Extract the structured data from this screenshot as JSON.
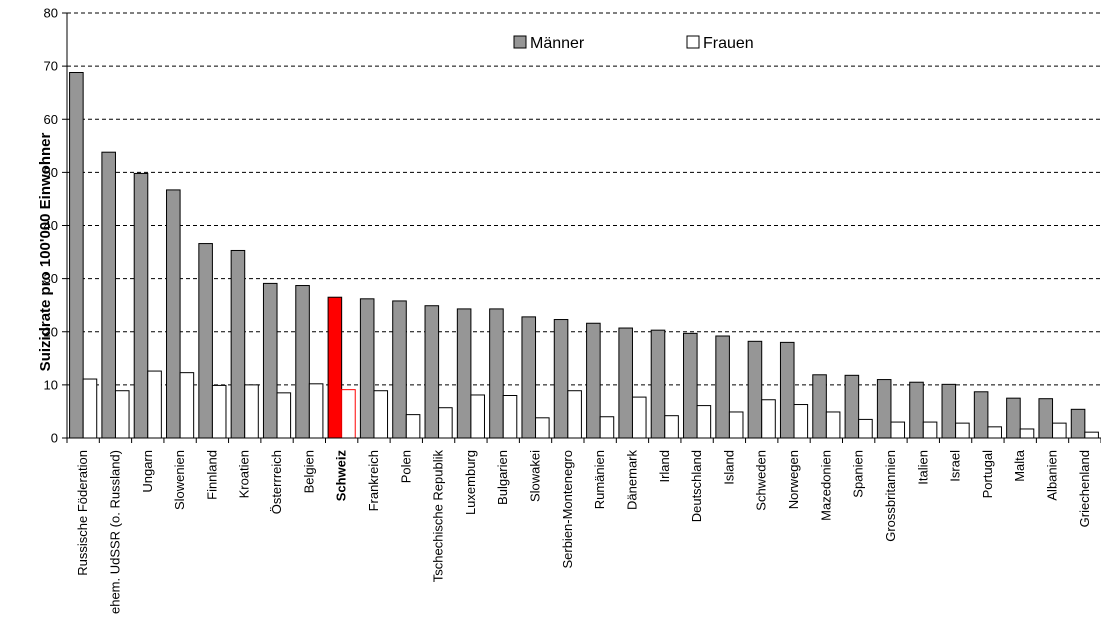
{
  "chart_data": {
    "type": "bar",
    "ylabel": "Suizidrate pro 100'000 Einwohner",
    "xlabel": "",
    "ylim": [
      0,
      80
    ],
    "yticks": [
      0,
      10,
      20,
      30,
      40,
      50,
      60,
      70,
      80
    ],
    "grid": true,
    "legend_position": "top-center",
    "categories": [
      "Russische Föderation",
      "ehem. UdSSR (o. Russland)",
      "Ungarn",
      "Slowenien",
      "Finnland",
      "Kroatien",
      "Österrreich",
      "Belgien",
      "Schweiz",
      "Frankreich",
      "Polen",
      "Tschechische Republik",
      "Luxemburg",
      "Bulgarien",
      "Slowakei",
      "Serbien-Montenegro",
      "Rumänien",
      "Dänemark",
      "Irland",
      "Deutschland",
      "Island",
      "Schweden",
      "Norwegen",
      "Mazedonien",
      "Spanien",
      "Grossbritannien",
      "Italien",
      "Israel",
      "Portugal",
      "Malta",
      "Albanien",
      "Griechenland"
    ],
    "highlight_category": "Schweiz",
    "highlight_color": "#ff0000",
    "series": [
      {
        "name": "Männer",
        "color": "#969696",
        "values": [
          68.8,
          53.8,
          49.8,
          46.7,
          36.6,
          35.3,
          29.1,
          28.7,
          26.5,
          26.2,
          25.8,
          24.9,
          24.3,
          24.3,
          22.8,
          22.3,
          21.6,
          20.7,
          20.3,
          19.7,
          19.2,
          18.2,
          18.0,
          11.9,
          11.8,
          11.0,
          10.5,
          10.1,
          8.7,
          7.5,
          7.4,
          5.4
        ]
      },
      {
        "name": "Frauen",
        "color": "#ffffff",
        "values": [
          11.1,
          8.9,
          12.6,
          12.3,
          9.9,
          10.0,
          8.5,
          10.2,
          9.1,
          8.9,
          4.4,
          5.7,
          8.1,
          8.0,
          3.8,
          8.9,
          4.0,
          7.7,
          4.2,
          6.1,
          4.9,
          7.2,
          6.3,
          4.9,
          3.5,
          3.0,
          3.0,
          2.8,
          2.1,
          1.7,
          2.8,
          1.1
        ]
      }
    ]
  }
}
